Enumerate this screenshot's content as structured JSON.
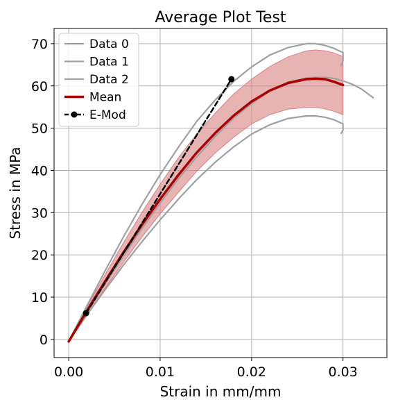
{
  "chart_data": {
    "type": "line",
    "title": "Average Plot Test",
    "xlabel": "Strain in mm/mm",
    "ylabel": "Stress in MPa",
    "xlim": [
      -0.0016,
      0.0348
    ],
    "ylim": [
      -4.3,
      73.6
    ],
    "grid": true,
    "legend_position": "top-left",
    "xticks": [
      {
        "value": 0.0,
        "label": "0.00"
      },
      {
        "value": 0.01,
        "label": "0.01"
      },
      {
        "value": 0.02,
        "label": "0.02"
      },
      {
        "value": 0.03,
        "label": "0.03"
      }
    ],
    "yticks": [
      {
        "value": 0,
        "label": "0"
      },
      {
        "value": 10,
        "label": "10"
      },
      {
        "value": 20,
        "label": "20"
      },
      {
        "value": 30,
        "label": "30"
      },
      {
        "value": 40,
        "label": "40"
      },
      {
        "value": 50,
        "label": "50"
      },
      {
        "value": 60,
        "label": "60"
      },
      {
        "value": 70,
        "label": "70"
      }
    ],
    "colors": {
      "data": "#a0a0a0",
      "mean": "#aa0000",
      "band": "#d88080",
      "emod": "#000000",
      "grid": "#b0b0b0"
    },
    "series": [
      {
        "name": "Data 0",
        "kind": "data",
        "x": [
          0,
          0.002,
          0.004,
          0.006,
          0.008,
          0.01,
          0.012,
          0.014,
          0.016,
          0.018,
          0.02,
          0.022,
          0.024,
          0.026,
          0.027,
          0.028,
          0.029,
          0.03,
          0.03,
          0.0298
        ],
        "y": [
          -0.5,
          8.0,
          16.3,
          24.3,
          31.9,
          39.0,
          45.5,
          51.6,
          56.6,
          61.0,
          64.5,
          67.3,
          69.1,
          70.0,
          70.0,
          69.6,
          68.9,
          67.9,
          66.0,
          64.8
        ]
      },
      {
        "name": "Data 1",
        "kind": "data",
        "x": [
          0,
          0.002,
          0.004,
          0.006,
          0.008,
          0.01,
          0.012,
          0.014,
          0.016,
          0.018,
          0.02,
          0.022,
          0.024,
          0.026,
          0.027,
          0.028,
          0.029,
          0.03,
          0.031,
          0.032,
          0.0333
        ],
        "y": [
          -0.5,
          6.5,
          13.2,
          19.8,
          26.2,
          32.3,
          38.0,
          43.2,
          48.0,
          52.3,
          55.8,
          58.8,
          60.9,
          61.9,
          62.0,
          62.0,
          61.8,
          61.2,
          60.4,
          59.3,
          57.2
        ]
      },
      {
        "name": "Data 2",
        "kind": "data",
        "x": [
          0,
          0.002,
          0.004,
          0.006,
          0.008,
          0.01,
          0.012,
          0.014,
          0.016,
          0.018,
          0.02,
          0.022,
          0.024,
          0.026,
          0.027,
          0.028,
          0.029,
          0.03,
          0.03,
          0.0298
        ],
        "y": [
          -0.5,
          5.8,
          11.8,
          17.6,
          23.1,
          28.3,
          33.2,
          37.8,
          41.9,
          45.5,
          48.6,
          50.8,
          52.3,
          52.9,
          52.9,
          52.6,
          52.0,
          51.0,
          49.5,
          48.8
        ]
      },
      {
        "name": "Mean",
        "kind": "mean",
        "x": [
          0,
          0.002,
          0.004,
          0.006,
          0.008,
          0.01,
          0.012,
          0.014,
          0.016,
          0.018,
          0.02,
          0.022,
          0.024,
          0.026,
          0.027,
          0.028,
          0.029,
          0.03
        ],
        "y": [
          -0.5,
          6.8,
          13.8,
          20.6,
          27.1,
          33.2,
          38.9,
          44.2,
          48.8,
          52.9,
          56.3,
          58.9,
          60.7,
          61.6,
          61.7,
          61.6,
          61.0,
          60.2
        ]
      },
      {
        "name": "E-Mod",
        "kind": "emod",
        "x": [
          0.0019,
          0.0178
        ],
        "y": [
          6.2,
          61.6
        ]
      }
    ],
    "band": {
      "x": [
        0,
        0.002,
        0.004,
        0.006,
        0.008,
        0.01,
        0.012,
        0.014,
        0.016,
        0.018,
        0.02,
        0.022,
        0.024,
        0.026,
        0.027,
        0.028,
        0.029,
        0.03
      ],
      "upper": [
        -0.5,
        7.6,
        15.4,
        22.9,
        30.0,
        36.7,
        43.0,
        48.6,
        53.5,
        58.0,
        61.6,
        64.6,
        66.9,
        68.3,
        68.5,
        68.3,
        67.8,
        67.0
      ],
      "lower": [
        -0.5,
        6.0,
        12.2,
        18.3,
        24.2,
        29.7,
        34.8,
        39.8,
        44.1,
        47.8,
        51.0,
        53.2,
        54.5,
        54.9,
        54.9,
        54.6,
        54.0,
        53.2
      ]
    },
    "legend": [
      {
        "label": "Data 0",
        "kind": "data"
      },
      {
        "label": "Data 1",
        "kind": "data"
      },
      {
        "label": "Data 2",
        "kind": "data"
      },
      {
        "label": "Mean",
        "kind": "mean"
      },
      {
        "label": "E-Mod",
        "kind": "emod"
      }
    ]
  }
}
